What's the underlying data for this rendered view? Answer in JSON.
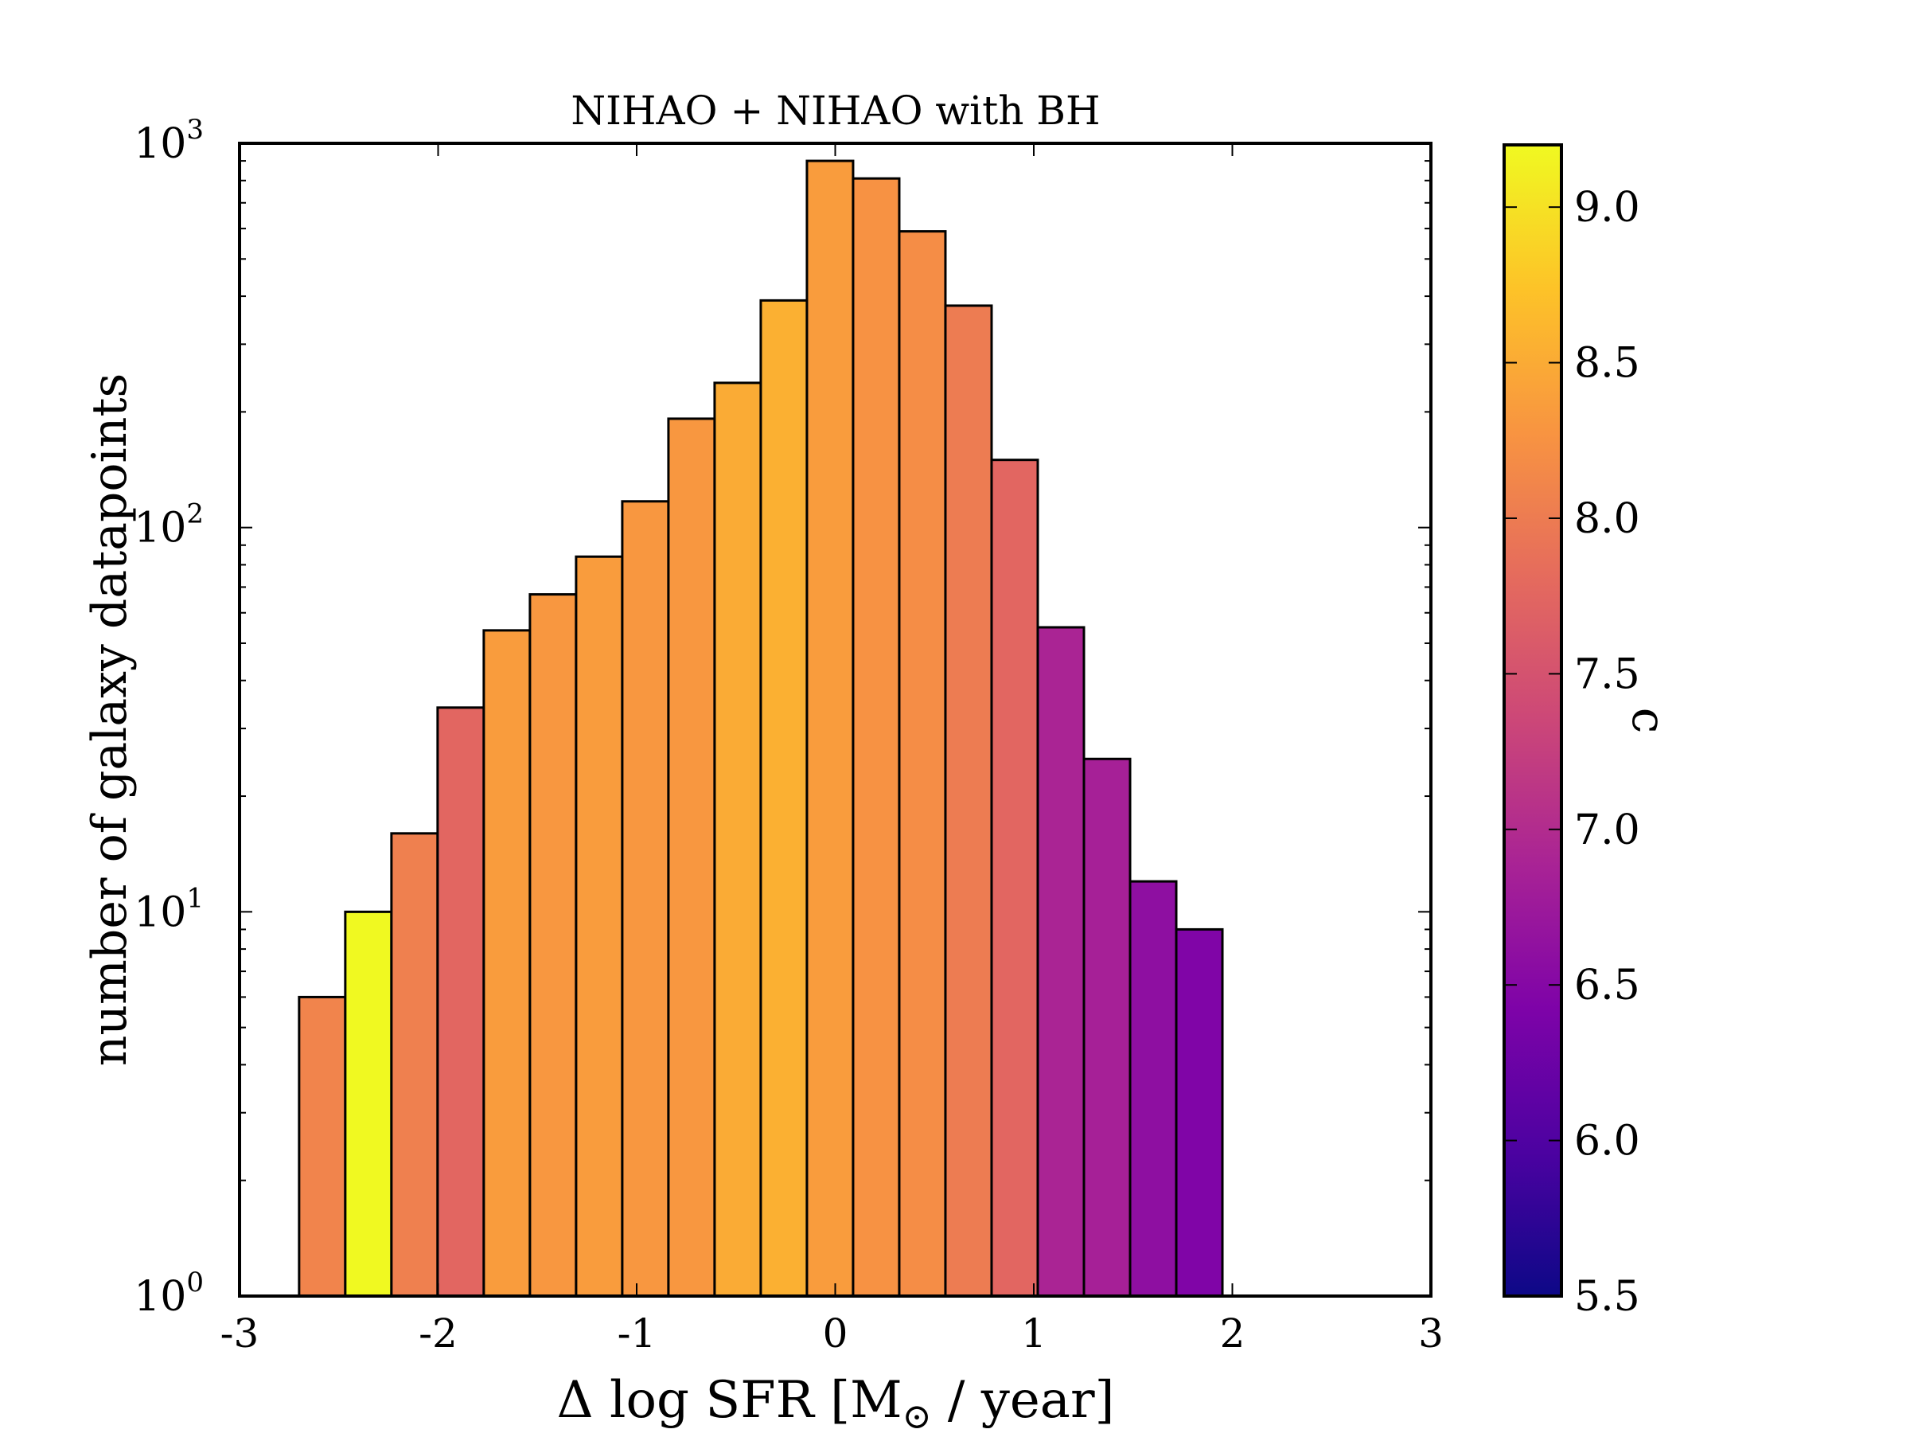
{
  "chart_data": {
    "type": "bar",
    "title": "NIHAO + NIHAO with BH",
    "xlabel": "Δ log SFR [M",
    "xlabel_subscript": "⊙",
    "xlabel_tail": " / year]",
    "ylabel": "number of galaxy datapoints",
    "xlim": [
      -3,
      3
    ],
    "ylim": [
      1,
      1000
    ],
    "yscale": "log",
    "grid": false,
    "x_ticks": [
      {
        "value": -3,
        "label": "-3"
      },
      {
        "value": -2,
        "label": "-2"
      },
      {
        "value": -1,
        "label": "-1"
      },
      {
        "value": 0,
        "label": "0"
      },
      {
        "value": 1,
        "label": "1"
      },
      {
        "value": 2,
        "label": "2"
      },
      {
        "value": 3,
        "label": "3"
      }
    ],
    "y_ticks": [
      {
        "value": 1,
        "base": "10",
        "exp": "0"
      },
      {
        "value": 10,
        "base": "10",
        "exp": "1"
      },
      {
        "value": 100,
        "base": "10",
        "exp": "2"
      },
      {
        "value": 1000,
        "base": "10",
        "exp": "3"
      }
    ],
    "bin_width": 0.2325,
    "bars": [
      {
        "x0": -2.7,
        "count": 6,
        "c": 8.1
      },
      {
        "x0": -2.4675,
        "count": 10,
        "c": 9.2
      },
      {
        "x0": -2.235,
        "count": 16,
        "c": 8.05
      },
      {
        "x0": -2.0025,
        "count": 34,
        "c": 7.75
      },
      {
        "x0": -1.77,
        "count": 54,
        "c": 8.35
      },
      {
        "x0": -1.5375,
        "count": 67,
        "c": 8.3
      },
      {
        "x0": -1.305,
        "count": 84,
        "c": 8.35
      },
      {
        "x0": -1.0725,
        "count": 117,
        "c": 8.3
      },
      {
        "x0": -0.84,
        "count": 192,
        "c": 8.3
      },
      {
        "x0": -0.6075,
        "count": 238,
        "c": 8.5
      },
      {
        "x0": -0.375,
        "count": 390,
        "c": 8.55
      },
      {
        "x0": -0.1425,
        "count": 900,
        "c": 8.35
      },
      {
        "x0": 0.09,
        "count": 810,
        "c": 8.25
      },
      {
        "x0": 0.3225,
        "count": 590,
        "c": 8.2
      },
      {
        "x0": 0.555,
        "count": 378,
        "c": 8.0
      },
      {
        "x0": 0.7875,
        "count": 150,
        "c": 7.75
      },
      {
        "x0": 1.02,
        "count": 55,
        "c": 6.9
      },
      {
        "x0": 1.2525,
        "count": 25,
        "c": 6.85
      },
      {
        "x0": 1.485,
        "count": 12,
        "c": 6.6
      },
      {
        "x0": 1.7175,
        "count": 9,
        "c": 6.45
      }
    ],
    "colorbar": {
      "label": "c",
      "colormap": "plasma",
      "range": [
        5.5,
        9.2
      ],
      "ticks": [
        {
          "value": 5.5,
          "label": "5.5"
        },
        {
          "value": 6.0,
          "label": "6.0"
        },
        {
          "value": 6.5,
          "label": "6.5"
        },
        {
          "value": 7.0,
          "label": "7.0"
        },
        {
          "value": 7.5,
          "label": "7.5"
        },
        {
          "value": 8.0,
          "label": "8.0"
        },
        {
          "value": 8.5,
          "label": "8.5"
        },
        {
          "value": 9.0,
          "label": "9.0"
        }
      ]
    }
  }
}
